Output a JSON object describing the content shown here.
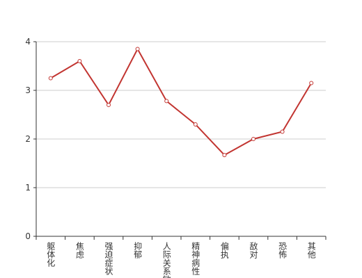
{
  "chart_data": {
    "type": "line",
    "categories": [
      "躯体化",
      "焦虑",
      "强迫症状",
      "抑郁",
      "人际关系敏感",
      "精神病性",
      "偏执",
      "敌对",
      "恐怖",
      "其他"
    ],
    "series": [
      {
        "color": "#c23531",
        "values": [
          3.25,
          3.6,
          2.7,
          3.85,
          2.78,
          2.3,
          1.67,
          2.0,
          2.15,
          3.15
        ]
      }
    ],
    "ylim": [
      0,
      4
    ],
    "yticks": [
      0,
      1,
      2,
      3,
      4
    ],
    "grid": true
  }
}
